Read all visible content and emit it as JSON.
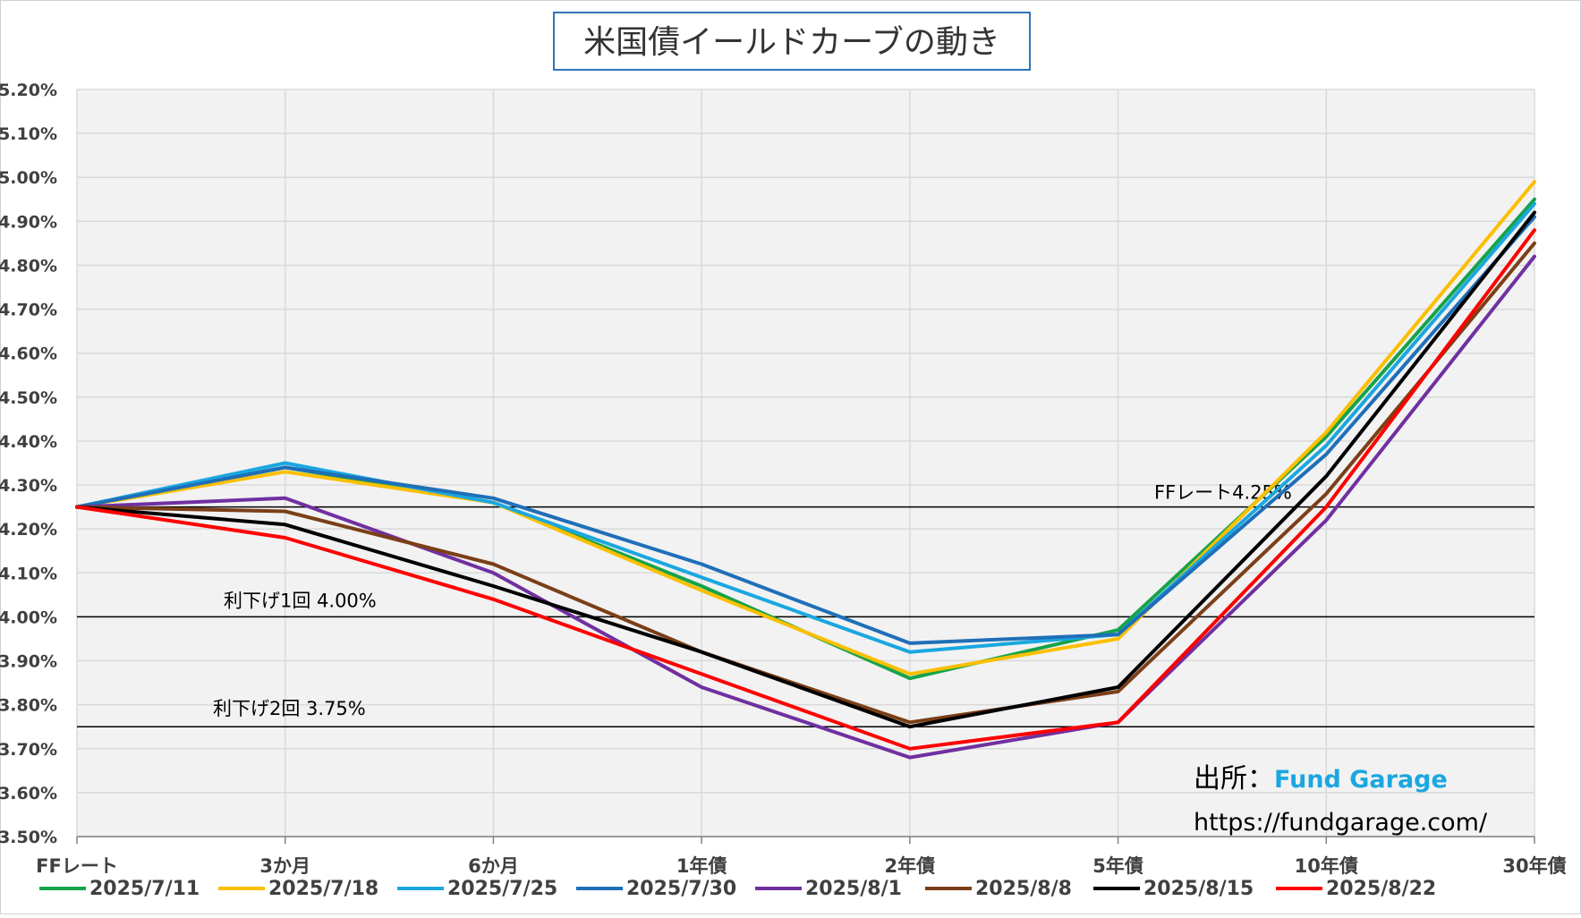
{
  "chart_data": {
    "type": "line",
    "title": "米国債イールドカーブの動き",
    "categories": [
      "FFレート",
      "3か月",
      "6か月",
      "1年債",
      "2年債",
      "5年債",
      "10年債",
      "30年債"
    ],
    "ylim": [
      3.5,
      5.2
    ],
    "ytick_step": 0.1,
    "y_tick_labels": [
      "3.50%",
      "3.60%",
      "3.70%",
      "3.80%",
      "3.90%",
      "4.00%",
      "4.10%",
      "4.20%",
      "4.30%",
      "4.40%",
      "4.50%",
      "4.60%",
      "4.70%",
      "4.80%",
      "4.90%",
      "5.00%",
      "5.10%",
      "5.20%"
    ],
    "grid": true,
    "legend_position": "bottom",
    "series": [
      {
        "name": "2025/7/11",
        "color": "#16a34a",
        "values": [
          4.25,
          4.34,
          4.26,
          4.07,
          3.86,
          3.97,
          4.41,
          4.95
        ]
      },
      {
        "name": "2025/7/18",
        "color": "#fbbf00",
        "values": [
          4.25,
          4.33,
          4.26,
          4.06,
          3.87,
          3.95,
          4.42,
          4.99
        ]
      },
      {
        "name": "2025/7/25",
        "color": "#1aa7e0",
        "values": [
          4.25,
          4.35,
          4.26,
          4.09,
          3.92,
          3.96,
          4.39,
          4.94
        ]
      },
      {
        "name": "2025/7/30",
        "color": "#1f6fb8",
        "values": [
          4.25,
          4.34,
          4.27,
          4.12,
          3.94,
          3.96,
          4.37,
          4.91
        ]
      },
      {
        "name": "2025/8/1",
        "color": "#7030a0",
        "values": [
          4.25,
          4.27,
          4.1,
          3.84,
          3.68,
          3.76,
          4.22,
          4.82
        ]
      },
      {
        "name": "2025/8/8",
        "color": "#7b3f17",
        "values": [
          4.25,
          4.24,
          4.12,
          3.92,
          3.76,
          3.83,
          4.28,
          4.85
        ]
      },
      {
        "name": "2025/8/15",
        "color": "#000000",
        "values": [
          4.25,
          4.21,
          4.07,
          3.92,
          3.75,
          3.84,
          4.32,
          4.92
        ]
      },
      {
        "name": "2025/8/22",
        "color": "#ff0000",
        "values": [
          4.25,
          4.18,
          4.04,
          3.87,
          3.7,
          3.76,
          4.25,
          4.88
        ]
      }
    ],
    "reference_lines": [
      {
        "value": 4.25,
        "label": "FFレート4.25%"
      },
      {
        "value": 4.0,
        "label": "利下げ1回 4.00%"
      },
      {
        "value": 3.75,
        "label": "利下げ2回 3.75%"
      }
    ]
  },
  "source": {
    "prefix": "出所：",
    "name": "Fund Garage",
    "url": "https://fundgarage.com/"
  },
  "colors": {
    "plot_bg": "#f2f2f2",
    "grid": "#d9d9d9",
    "title_border": "#2e75b6",
    "source_name": "#1aa7e0"
  }
}
